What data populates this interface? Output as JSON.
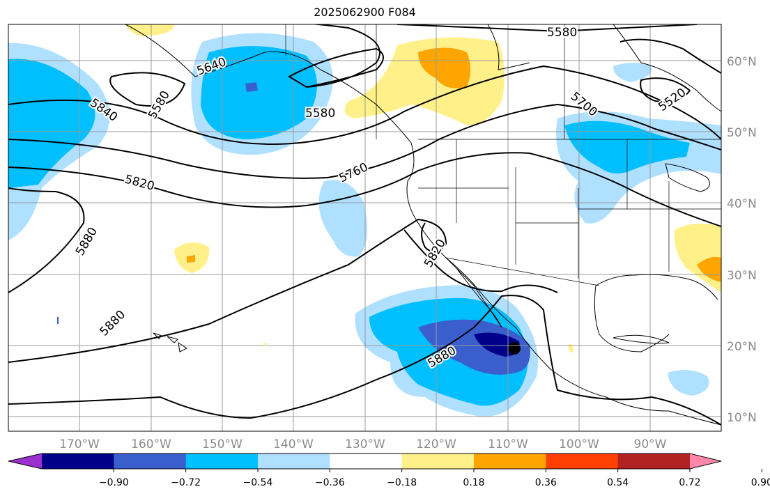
{
  "title": "2025062900 F084",
  "map": {
    "lat_labels": [
      "60°N",
      "50°N",
      "40°N",
      "30°N",
      "20°N",
      "10°N"
    ],
    "lon_labels": [
      "170°W",
      "160°W",
      "150°W",
      "140°W",
      "130°W",
      "120°W",
      "110°W",
      "100°W",
      "90°W"
    ],
    "gridlines": true
  },
  "contour_labels": [
    "5580",
    "5640",
    "5840",
    "5580",
    "5580",
    "5700",
    "5520",
    "5760",
    "5820",
    "5880",
    "5820",
    "5880",
    "5880"
  ],
  "colorbar": {
    "tick_labels": [
      "−0.90",
      "−0.72",
      "−0.54",
      "−0.36",
      "−0.18",
      "0.18",
      "0.36",
      "0.54",
      "0.72",
      "0.90"
    ],
    "colors": [
      "#9b30d0",
      "#00008b",
      "#3a5fcd",
      "#00bfff",
      "#b0e0ff",
      "#ffffff",
      "#fff08a",
      "#ffa500",
      "#ff4000",
      "#b22222",
      "#ff88aa"
    ],
    "extend": "both"
  }
}
